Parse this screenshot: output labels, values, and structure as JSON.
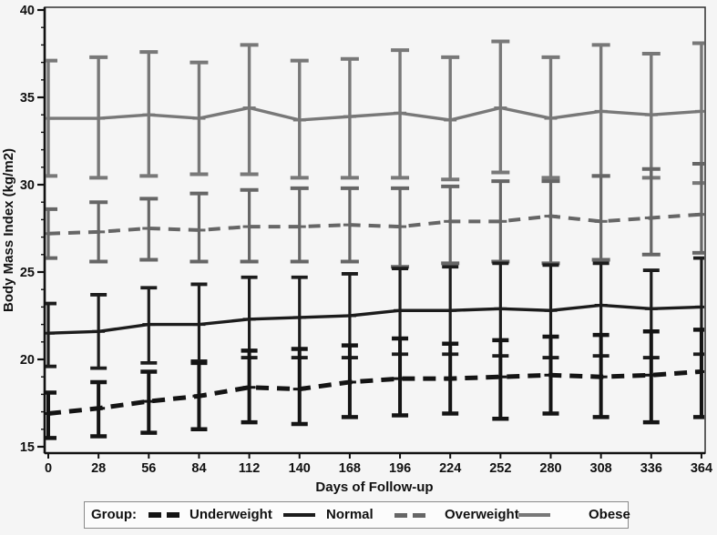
{
  "chart_data": {
    "type": "line",
    "title": "",
    "xlabel": "Days of Follow-up",
    "ylabel": "Body Mass Index (kg/m2)",
    "x": [
      0,
      28,
      56,
      84,
      112,
      140,
      168,
      196,
      224,
      252,
      280,
      308,
      336,
      364
    ],
    "ylim": [
      15,
      40
    ],
    "yticks": [
      15,
      20,
      25,
      30,
      35,
      40
    ],
    "y_minor_step": 1,
    "grid": false,
    "error_bars": true,
    "legend": {
      "label": "Group:",
      "position": "bottom"
    },
    "series": [
      {
        "name": "Underweight",
        "line": "dashed",
        "color": "#141414",
        "mean": [
          16.9,
          17.2,
          17.6,
          17.9,
          18.4,
          18.3,
          18.7,
          18.9,
          18.9,
          19.0,
          19.1,
          19.0,
          19.1,
          19.3
        ],
        "lower": [
          15.5,
          15.6,
          15.8,
          16.0,
          16.4,
          16.3,
          16.7,
          16.8,
          16.9,
          16.6,
          16.9,
          16.7,
          16.4,
          16.7
        ],
        "upper": [
          18.1,
          18.7,
          19.3,
          19.8,
          20.5,
          20.6,
          20.8,
          21.2,
          20.9,
          21.1,
          21.3,
          21.4,
          21.6,
          21.7
        ]
      },
      {
        "name": "Normal",
        "line": "solid",
        "color": "#1c1c1c",
        "mean": [
          21.5,
          21.6,
          22.0,
          22.0,
          22.3,
          22.4,
          22.5,
          22.8,
          22.8,
          22.9,
          22.8,
          23.1,
          22.9,
          23.0
        ],
        "lower": [
          19.6,
          19.5,
          19.8,
          19.9,
          20.1,
          20.1,
          20.1,
          20.3,
          20.3,
          20.2,
          20.1,
          20.2,
          20.1,
          20.3
        ],
        "upper": [
          23.2,
          23.7,
          24.1,
          24.3,
          24.7,
          24.7,
          24.9,
          25.2,
          25.3,
          25.5,
          25.4,
          25.5,
          25.1,
          25.8
        ]
      },
      {
        "name": "Overweight",
        "line": "dashed",
        "color": "#666666",
        "mean": [
          27.2,
          27.3,
          27.5,
          27.4,
          27.6,
          27.6,
          27.7,
          27.6,
          27.9,
          27.9,
          28.2,
          27.9,
          28.1,
          28.3
        ],
        "lower": [
          25.8,
          25.6,
          25.7,
          25.6,
          25.6,
          25.6,
          25.6,
          25.3,
          25.5,
          25.6,
          25.5,
          25.7,
          26.0,
          26.1
        ],
        "upper": [
          28.6,
          29.0,
          29.2,
          29.5,
          29.7,
          29.8,
          29.8,
          29.8,
          29.9,
          30.2,
          30.2,
          30.5,
          30.9,
          31.2
        ]
      },
      {
        "name": "Obese",
        "line": "solid",
        "color": "#787878",
        "mean": [
          33.8,
          33.8,
          34.0,
          33.8,
          34.4,
          33.7,
          33.9,
          34.1,
          33.7,
          34.4,
          33.8,
          34.2,
          34.0,
          34.2
        ],
        "lower": [
          30.5,
          30.4,
          30.5,
          30.6,
          30.6,
          30.4,
          30.4,
          30.4,
          30.3,
          30.7,
          30.4,
          30.5,
          30.4,
          30.1
        ],
        "upper": [
          37.1,
          37.3,
          37.6,
          37.0,
          38.0,
          37.1,
          37.2,
          37.7,
          37.3,
          38.2,
          37.3,
          38.0,
          37.5,
          38.1
        ]
      }
    ]
  }
}
